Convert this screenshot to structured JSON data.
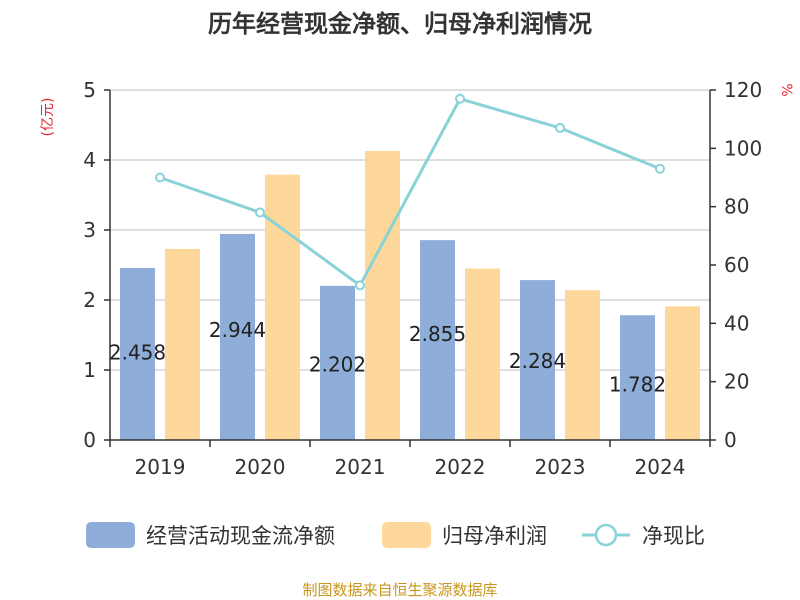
{
  "chart_data": {
    "type": "bar",
    "title": "历年经营现金净额、归母净利润情况",
    "categories": [
      "2019",
      "2020",
      "2021",
      "2022",
      "2023",
      "2024"
    ],
    "series": [
      {
        "name": "经营活动现金流净额",
        "type": "bar",
        "axis": "left",
        "values": [
          2.458,
          2.944,
          2.202,
          2.855,
          2.284,
          1.782
        ],
        "color": "#8eadd9"
      },
      {
        "name": "归母净利润",
        "type": "bar",
        "axis": "left",
        "values": [
          2.73,
          3.79,
          4.13,
          2.45,
          2.14,
          1.91
        ],
        "color": "#fed89b"
      },
      {
        "name": "净现比",
        "type": "line",
        "axis": "right",
        "values": [
          90,
          78,
          53,
          117,
          107,
          93
        ],
        "color": "#88d2d8"
      }
    ],
    "data_labels": [
      "2.458",
      "2.944",
      "2.202",
      "2.855",
      "2.284",
      "1.782"
    ],
    "y_left": {
      "label": "(亿元)",
      "ticks": [
        "0",
        "1",
        "2",
        "3",
        "4",
        "5"
      ],
      "ylim": [
        0,
        5
      ]
    },
    "y_right": {
      "label": "%",
      "ticks": [
        "0",
        "20",
        "40",
        "60",
        "80",
        "100",
        "120"
      ],
      "ylim": [
        0,
        120
      ]
    },
    "legend_position": "bottom"
  },
  "source": "制图数据来自恒生聚源数据库"
}
